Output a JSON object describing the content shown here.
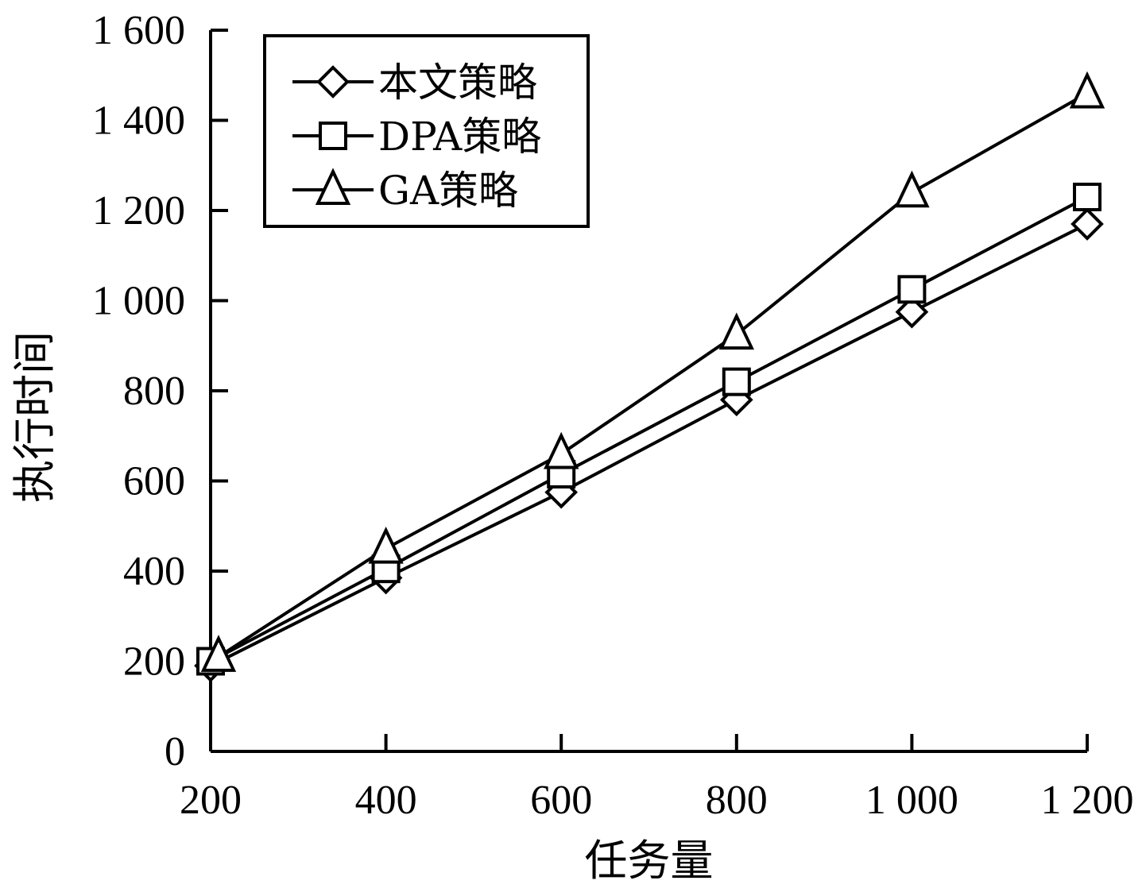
{
  "chart_data": {
    "type": "line",
    "title": "",
    "xlabel": "任务量",
    "ylabel": "执行时间",
    "x": [
      200,
      400,
      600,
      800,
      1000,
      1200
    ],
    "x_tick_labels": [
      "200",
      "400",
      "600",
      "800",
      "1 000",
      "1 200"
    ],
    "xlim": [
      200,
      1200
    ],
    "ylim": [
      0,
      1600
    ],
    "y_ticks": [
      0,
      200,
      400,
      600,
      800,
      1000,
      1200,
      1400,
      1600
    ],
    "y_tick_labels": [
      "0",
      "200",
      "400",
      "600",
      "800",
      "1 000",
      "1 200",
      "1 400",
      "1 600"
    ],
    "grid": false,
    "legend_position": "top-left",
    "series": [
      {
        "name": "本文策略",
        "marker": "diamond",
        "values": [
          190,
          385,
          575,
          780,
          975,
          1170
        ]
      },
      {
        "name": "DPA策略",
        "marker": "square",
        "values": [
          200,
          405,
          615,
          820,
          1025,
          1230
        ]
      },
      {
        "name": "GA策略",
        "marker": "triangle",
        "values": [
          210,
          450,
          660,
          925,
          1240,
          1460
        ]
      }
    ]
  }
}
